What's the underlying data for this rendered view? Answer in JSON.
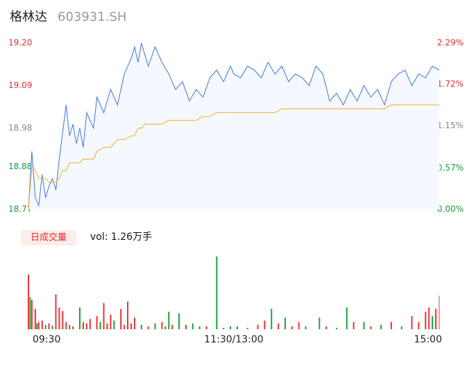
{
  "header": {
    "name": "格林达",
    "code": "603931.SH"
  },
  "chart_data": [
    {
      "type": "line",
      "x": [
        0,
        2,
        4,
        6,
        8,
        10,
        12,
        14,
        16,
        18,
        20,
        22,
        24,
        26,
        28,
        30,
        32,
        34,
        36,
        38,
        40,
        44,
        48,
        52,
        56,
        60,
        62,
        64,
        66,
        68,
        70,
        74,
        78,
        82,
        86,
        90,
        94,
        98,
        102,
        106,
        110,
        114,
        118,
        120,
        124,
        128,
        132,
        136,
        140,
        144,
        148,
        152,
        156,
        160,
        164,
        168,
        172,
        176,
        180,
        184,
        188,
        192,
        196,
        200,
        204,
        208,
        212,
        216,
        220,
        224,
        228,
        232,
        236,
        240
      ],
      "series": [
        {
          "name": "price",
          "color": "#4a7fe8",
          "values": [
            18.77,
            18.92,
            18.8,
            18.78,
            18.86,
            18.8,
            18.83,
            18.85,
            18.82,
            18.9,
            18.97,
            19.04,
            18.96,
            18.99,
            18.94,
            18.98,
            18.93,
            19.02,
            19.0,
            18.98,
            19.06,
            19.02,
            19.08,
            19.04,
            19.12,
            19.16,
            19.19,
            19.15,
            19.2,
            19.17,
            19.14,
            19.19,
            19.15,
            19.12,
            19.08,
            19.1,
            19.05,
            19.08,
            19.06,
            19.11,
            19.13,
            19.1,
            19.14,
            19.12,
            19.11,
            19.14,
            19.13,
            19.11,
            19.15,
            19.12,
            19.14,
            19.1,
            19.12,
            19.11,
            19.09,
            19.14,
            19.12,
            19.05,
            19.07,
            19.04,
            19.08,
            19.05,
            19.09,
            19.06,
            19.08,
            19.04,
            19.1,
            19.12,
            19.13,
            19.09,
            19.12,
            19.11,
            19.14,
            19.13
          ]
        },
        {
          "name": "average",
          "color": "#f2b33d",
          "values": [
            18.77,
            18.88,
            18.87,
            18.85,
            18.85,
            18.85,
            18.84,
            18.84,
            18.84,
            18.85,
            18.87,
            18.87,
            18.89,
            18.89,
            18.89,
            18.89,
            18.9,
            18.9,
            18.9,
            18.9,
            18.92,
            18.93,
            18.93,
            18.95,
            18.95,
            18.96,
            18.96,
            18.98,
            18.98,
            18.99,
            18.99,
            18.99,
            18.99,
            19.0,
            19.0,
            19.0,
            19.0,
            19.0,
            19.01,
            19.01,
            19.02,
            19.02,
            19.02,
            19.02,
            19.02,
            19.02,
            19.02,
            19.02,
            19.02,
            19.02,
            19.03,
            19.03,
            19.03,
            19.03,
            19.03,
            19.03,
            19.03,
            19.03,
            19.03,
            19.03,
            19.03,
            19.03,
            19.03,
            19.03,
            19.03,
            19.03,
            19.04,
            19.04,
            19.04,
            19.04,
            19.04,
            19.04,
            19.04,
            19.04
          ]
        }
      ],
      "xlim": [
        0,
        240
      ],
      "ylim": [
        18.77,
        19.2
      ],
      "yticks": [
        18.77,
        18.88,
        18.98,
        19.09,
        {
          "value": 19.2,
          "label": "19.20"
        }
      ],
      "ytick_colors": [
        "#1a9a3a",
        "#1a9a3a",
        "#888888",
        "#e53030",
        "#e53030"
      ],
      "y2lim": [
        0,
        2.29
      ],
      "y2ticks": [
        {
          "value": 0,
          "label": "0.00%"
        },
        {
          "value": 0.57,
          "label": "0.57%"
        },
        {
          "value": 1.15,
          "label": "1.15%"
        },
        {
          "value": 1.72,
          "label": "1.72%"
        },
        {
          "value": 2.29,
          "label": "2.29%"
        }
      ],
      "y2tick_colors": [
        "#1a9a3a",
        "#1a9a3a",
        "#888888",
        "#e53030",
        "#e53030"
      ]
    },
    {
      "type": "bar",
      "title": "日成交量",
      "annotation": "vol: 1.26万手",
      "x": [
        0,
        1,
        2,
        4,
        5,
        6,
        8,
        10,
        12,
        14,
        16,
        18,
        20,
        22,
        24,
        26,
        30,
        32,
        34,
        36,
        40,
        42,
        44,
        46,
        48,
        50,
        54,
        56,
        58,
        60,
        62,
        66,
        70,
        74,
        78,
        80,
        82,
        84,
        88,
        92,
        96,
        100,
        104,
        110,
        114,
        118,
        122,
        128,
        134,
        138,
        142,
        146,
        150,
        154,
        158,
        162,
        170,
        174,
        180,
        186,
        190,
        196,
        200,
        206,
        212,
        218,
        224,
        228,
        232,
        234,
        236,
        238,
        240
      ],
      "values": [
        75,
        44,
        40,
        28,
        8,
        10,
        12,
        6,
        8,
        5,
        48,
        30,
        25,
        10,
        6,
        4,
        30,
        10,
        8,
        14,
        18,
        10,
        36,
        8,
        20,
        12,
        28,
        6,
        38,
        8,
        16,
        6,
        4,
        8,
        10,
        4,
        24,
        6,
        22,
        6,
        8,
        4,
        4,
        100,
        2,
        4,
        4,
        2,
        6,
        12,
        28,
        8,
        16,
        4,
        10,
        4,
        16,
        4,
        2,
        30,
        10,
        10,
        4,
        6,
        10,
        4,
        18,
        10,
        24,
        30,
        18,
        28,
        46
      ],
      "colors": [
        "#f23030",
        "#1aa33a",
        "#f23030",
        "#f23030",
        "#1aa33a",
        "#f23030",
        "#f23030",
        "#1aa33a",
        "#f23030",
        "#1aa33a",
        "#f23030",
        "#f23030",
        "#f23030",
        "#f23030",
        "#1aa33a",
        "#f23030",
        "#1aa33a",
        "#f23030",
        "#f23030",
        "#f23030",
        "#f23030",
        "#1aa33a",
        "#f23030",
        "#f23030",
        "#f23030",
        "#1aa33a",
        "#f23030",
        "#f23030",
        "#f23030",
        "#f23030",
        "#f23030",
        "#1aa33a",
        "#f23030",
        "#1aa33a",
        "#f23030",
        "#1aa33a",
        "#1aa33a",
        "#f23030",
        "#1aa33a",
        "#f23030",
        "#1aa33a",
        "#1aa33a",
        "#f23030",
        "#1aa33a",
        "#f23030",
        "#1aa33a",
        "#1aa33a",
        "#f23030",
        "#f23030",
        "#f23030",
        "#1aa33a",
        "#f23030",
        "#1aa33a",
        "#f23030",
        "#f23030",
        "#1aa33a",
        "#1aa33a",
        "#f23030",
        "#1aa33a",
        "#1aa33a",
        "#f23030",
        "#1aa33a",
        "#f23030",
        "#1aa33a",
        "#f23030",
        "#1aa33a",
        "#f23030",
        "#f23030",
        "#f23030",
        "#f23030",
        "#1aa33a",
        "#f23030",
        "#f7a0a0"
      ],
      "xlim": [
        0,
        240
      ],
      "xticks": [
        {
          "value": 0,
          "label": "09:30"
        },
        {
          "value": 120,
          "label": "11:30/13:00"
        },
        {
          "value": 240,
          "label": "15:00"
        }
      ]
    }
  ]
}
